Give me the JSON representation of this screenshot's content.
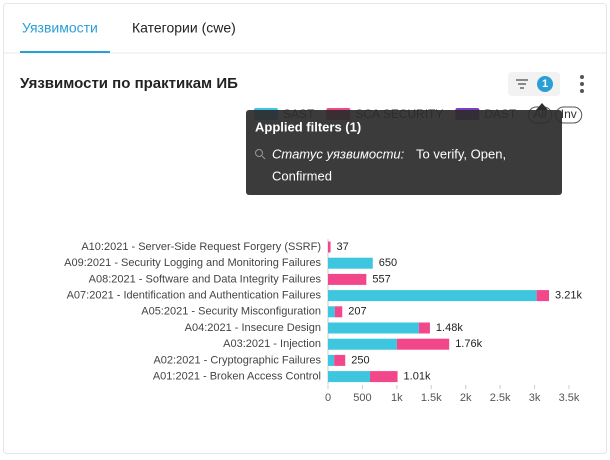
{
  "tabs": [
    "Уязвимости",
    "Категории (cwe)"
  ],
  "card": {
    "title": "Уязвимости по практикам ИБ",
    "filter_count": "1",
    "legend_buttons": [
      "All",
      "Inv"
    ]
  },
  "tooltip": {
    "title": "Applied filters (1)",
    "filter_name": "Статус уязвимости:",
    "filter_value_lines": [
      "To verify, Open,",
      "Confirmed"
    ]
  },
  "chart_data": {
    "type": "hbar-stacked",
    "categories": [
      "A10:2021 - Server-Side Request Forgery (SSRF)",
      "A09:2021 - Security Logging and Monitoring Failures",
      "A08:2021 - Software and Data Integrity Failures",
      "A07:2021 - Identification and Authentication Failures",
      "A05:2021 - Security Misconfiguration",
      "A04:2021 - Insecure Design",
      "A03:2021 - Injection",
      "A02:2021 - Cryptographic Failures",
      "A01:2021 - Broken Access Control"
    ],
    "series": [
      {
        "name": "SAST",
        "color": "#3ec5df",
        "values": [
          0,
          650,
          0,
          3030,
          100,
          1320,
          1000,
          90,
          610
        ]
      },
      {
        "name": "SCA SECURITY",
        "color": "#f2478b",
        "values": [
          37,
          0,
          557,
          180,
          107,
          160,
          760,
          160,
          400
        ]
      },
      {
        "name": "DAST",
        "color": "#7b3fc4",
        "values": [
          0,
          0,
          0,
          0,
          0,
          0,
          0,
          0,
          0
        ]
      }
    ],
    "total_labels": [
      "37",
      "650",
      "557",
      "3.21k",
      "207",
      "1.48k",
      "1.76k",
      "250",
      "1.01k"
    ],
    "xlim": [
      0,
      3500
    ],
    "xticks": [
      0,
      500,
      {
        "value": 1000,
        "label": "1k"
      },
      {
        "value": 1500,
        "label": "1.5k"
      },
      {
        "value": 2000,
        "label": "2k"
      },
      {
        "value": 2500,
        "label": "2.5k"
      },
      {
        "value": 3000,
        "label": "3k"
      },
      {
        "value": 3500,
        "label": "3.5k"
      }
    ]
  }
}
